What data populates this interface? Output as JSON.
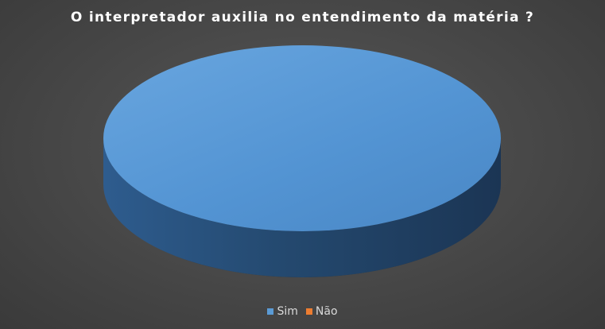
{
  "chart_data": {
    "type": "pie",
    "title": "O interpretador auxilia no entendimento da matéria ?",
    "series": [
      {
        "name": "Sim",
        "value": 100,
        "color": "#5B9BD5"
      },
      {
        "name": "Não",
        "value": 0,
        "color": "#ED7D31"
      }
    ],
    "legend_position": "bottom",
    "style": "3d"
  }
}
